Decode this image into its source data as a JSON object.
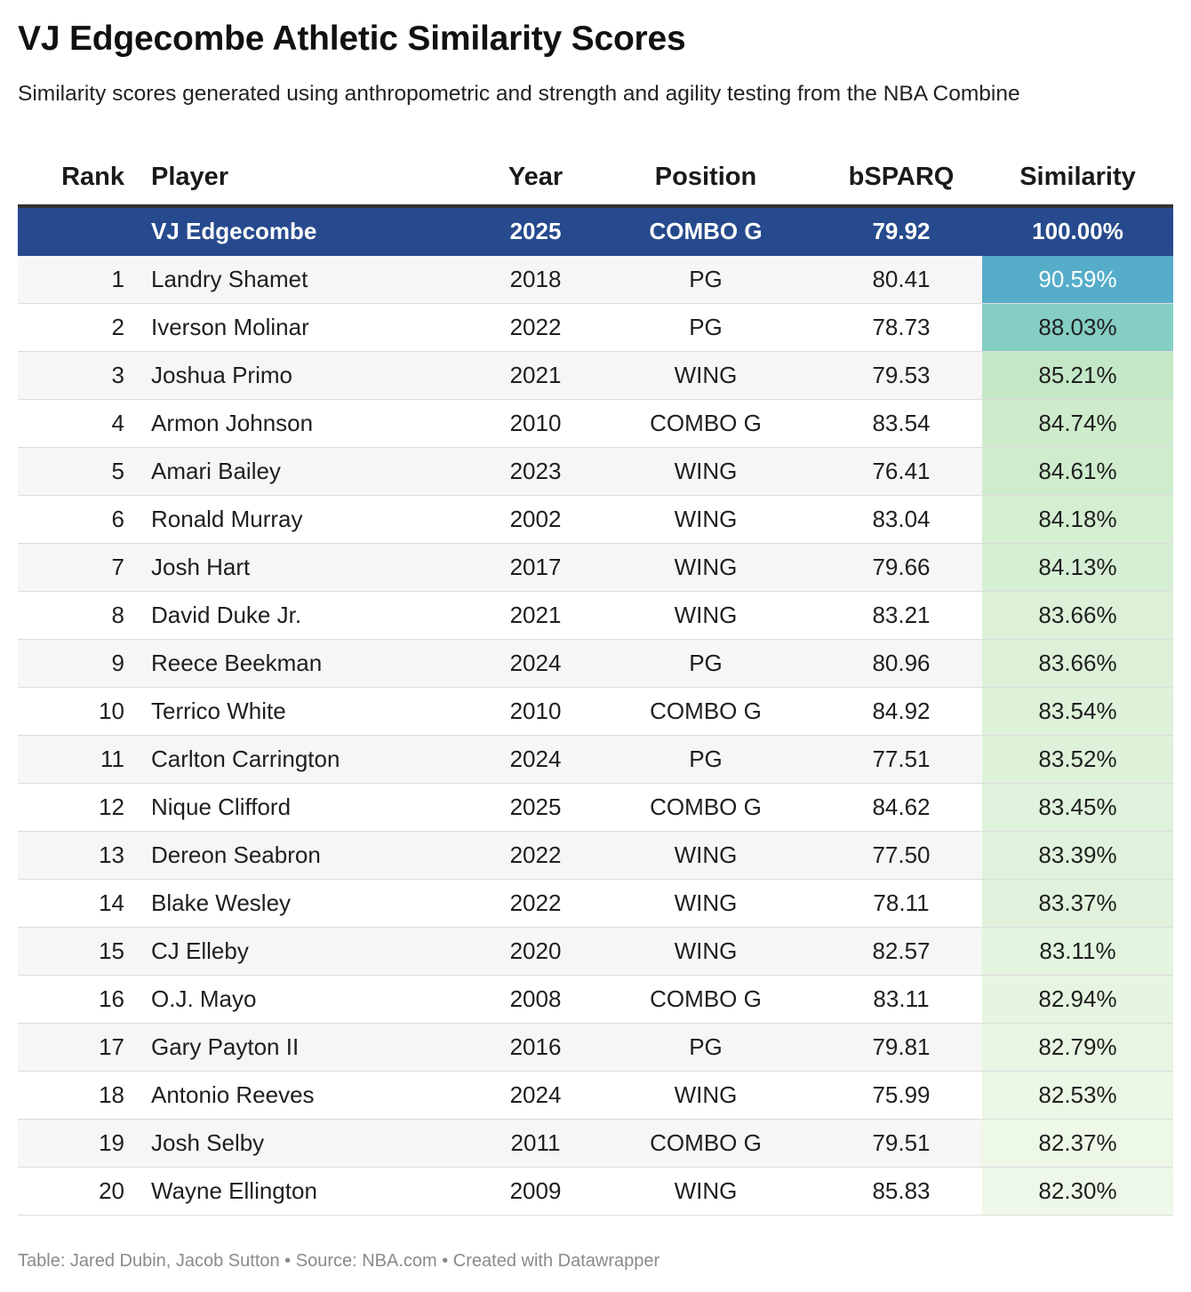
{
  "title": "VJ Edgecombe Athletic Similarity Scores",
  "subtitle": "Similarity scores generated using anthropometric and strength and agility testing from the NBA Combine",
  "footer": "Table: Jared Dubin, Jacob Sutton • Source: NBA.com • Created with Datawrapper",
  "colors": {
    "feature_row": "#264a8d",
    "sim_high": "#55adc9",
    "sim_low": "#eef8e8"
  },
  "chart_data": {
    "type": "table",
    "columns": [
      "Rank",
      "Player",
      "Year",
      "Position",
      "bSPARQ",
      "Similarity"
    ],
    "feature_row": {
      "rank": "",
      "player": "VJ Edgecombe",
      "year": "2025",
      "position": "COMBO G",
      "bsparq": "79.92",
      "similarity": "100.00%"
    },
    "rows": [
      {
        "rank": "1",
        "player": "Landry Shamet",
        "year": "2018",
        "position": "PG",
        "bsparq": "80.41",
        "similarity": "90.59%",
        "sim_value": 90.59
      },
      {
        "rank": "2",
        "player": "Iverson Molinar",
        "year": "2022",
        "position": "PG",
        "bsparq": "78.73",
        "similarity": "88.03%",
        "sim_value": 88.03
      },
      {
        "rank": "3",
        "player": "Joshua Primo",
        "year": "2021",
        "position": "WING",
        "bsparq": "79.53",
        "similarity": "85.21%",
        "sim_value": 85.21
      },
      {
        "rank": "4",
        "player": "Armon Johnson",
        "year": "2010",
        "position": "COMBO G",
        "bsparq": "83.54",
        "similarity": "84.74%",
        "sim_value": 84.74
      },
      {
        "rank": "5",
        "player": "Amari Bailey",
        "year": "2023",
        "position": "WING",
        "bsparq": "76.41",
        "similarity": "84.61%",
        "sim_value": 84.61
      },
      {
        "rank": "6",
        "player": "Ronald Murray",
        "year": "2002",
        "position": "WING",
        "bsparq": "83.04",
        "similarity": "84.18%",
        "sim_value": 84.18
      },
      {
        "rank": "7",
        "player": "Josh Hart",
        "year": "2017",
        "position": "WING",
        "bsparq": "79.66",
        "similarity": "84.13%",
        "sim_value": 84.13
      },
      {
        "rank": "8",
        "player": "David Duke Jr.",
        "year": "2021",
        "position": "WING",
        "bsparq": "83.21",
        "similarity": "83.66%",
        "sim_value": 83.66
      },
      {
        "rank": "9",
        "player": "Reece Beekman",
        "year": "2024",
        "position": "PG",
        "bsparq": "80.96",
        "similarity": "83.66%",
        "sim_value": 83.66
      },
      {
        "rank": "10",
        "player": "Terrico White",
        "year": "2010",
        "position": "COMBO G",
        "bsparq": "84.92",
        "similarity": "83.54%",
        "sim_value": 83.54
      },
      {
        "rank": "11",
        "player": "Carlton Carrington",
        "year": "2024",
        "position": "PG",
        "bsparq": "77.51",
        "similarity": "83.52%",
        "sim_value": 83.52
      },
      {
        "rank": "12",
        "player": "Nique Clifford",
        "year": "2025",
        "position": "COMBO G",
        "bsparq": "84.62",
        "similarity": "83.45%",
        "sim_value": 83.45
      },
      {
        "rank": "13",
        "player": "Dereon Seabron",
        "year": "2022",
        "position": "WING",
        "bsparq": "77.50",
        "similarity": "83.39%",
        "sim_value": 83.39
      },
      {
        "rank": "14",
        "player": "Blake Wesley",
        "year": "2022",
        "position": "WING",
        "bsparq": "78.11",
        "similarity": "83.37%",
        "sim_value": 83.37
      },
      {
        "rank": "15",
        "player": "CJ Elleby",
        "year": "2020",
        "position": "WING",
        "bsparq": "82.57",
        "similarity": "83.11%",
        "sim_value": 83.11
      },
      {
        "rank": "16",
        "player": "O.J. Mayo",
        "year": "2008",
        "position": "COMBO G",
        "bsparq": "83.11",
        "similarity": "82.94%",
        "sim_value": 82.94
      },
      {
        "rank": "17",
        "player": "Gary Payton II",
        "year": "2016",
        "position": "PG",
        "bsparq": "79.81",
        "similarity": "82.79%",
        "sim_value": 82.79
      },
      {
        "rank": "18",
        "player": "Antonio Reeves",
        "year": "2024",
        "position": "WING",
        "bsparq": "75.99",
        "similarity": "82.53%",
        "sim_value": 82.53
      },
      {
        "rank": "19",
        "player": "Josh Selby",
        "year": "2011",
        "position": "COMBO G",
        "bsparq": "79.51",
        "similarity": "82.37%",
        "sim_value": 82.37
      },
      {
        "rank": "20",
        "player": "Wayne Ellington",
        "year": "2009",
        "position": "WING",
        "bsparq": "85.83",
        "similarity": "82.30%",
        "sim_value": 82.3
      }
    ]
  }
}
